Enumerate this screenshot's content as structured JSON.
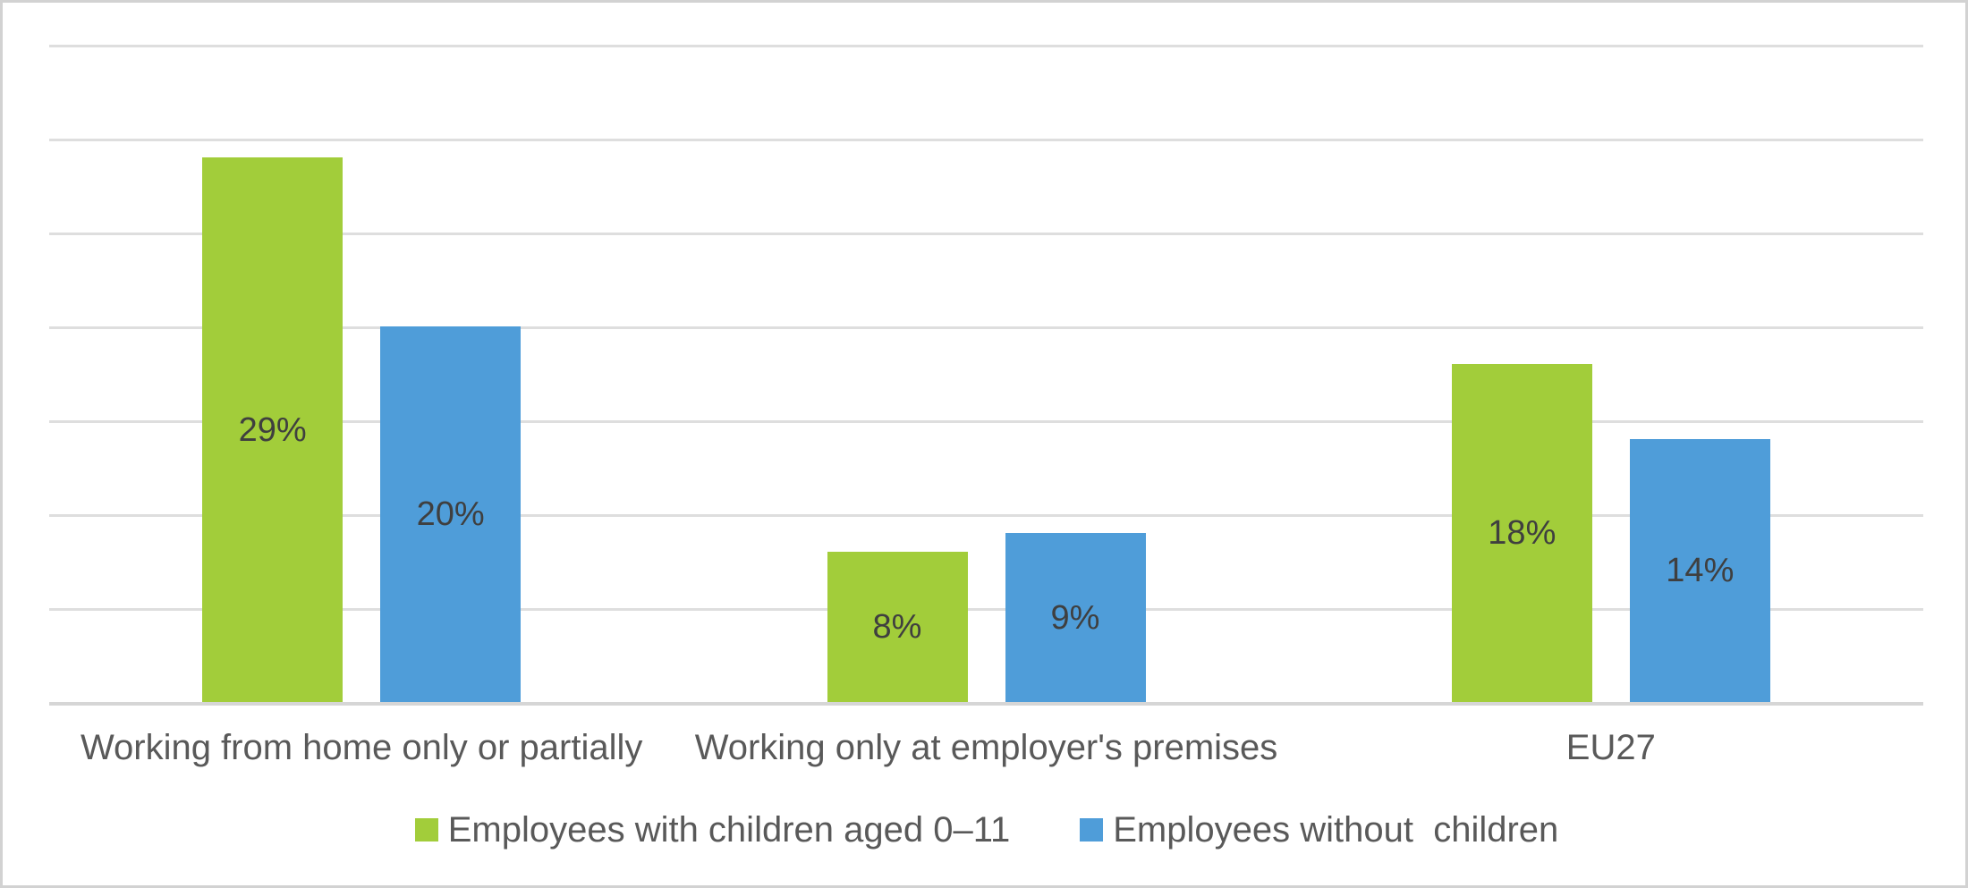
{
  "chart_data": {
    "type": "bar",
    "title": "",
    "xlabel": "",
    "ylabel": "",
    "categories": [
      "Working from home only or partially",
      "Working only at employer's premises",
      "EU27"
    ],
    "series": [
      {
        "name": "Employees with children aged 0–11",
        "values": [
          29,
          8,
          18
        ],
        "color": "#a2cd3a"
      },
      {
        "name": "Employees without  children",
        "values": [
          20,
          9,
          14
        ],
        "color": "#4f9dd9"
      }
    ],
    "data_labels": [
      [
        "29%",
        "8%",
        "18%"
      ],
      [
        "20%",
        "9%",
        "14%"
      ]
    ],
    "value_suffix": "%",
    "ylim": [
      0,
      35
    ],
    "gridline_interval": 5,
    "grid": true,
    "y_axis_labels_visible": false,
    "legend_position": "bottom",
    "data_label_position": "center-inside"
  },
  "colors": {
    "background": "#ffffff",
    "figure_border": "#d2d2d2",
    "gridline": "#dedede",
    "axis_line": "#d6d6d6",
    "data_label_text": "#3f3f3f",
    "axis_text": "#595959"
  }
}
